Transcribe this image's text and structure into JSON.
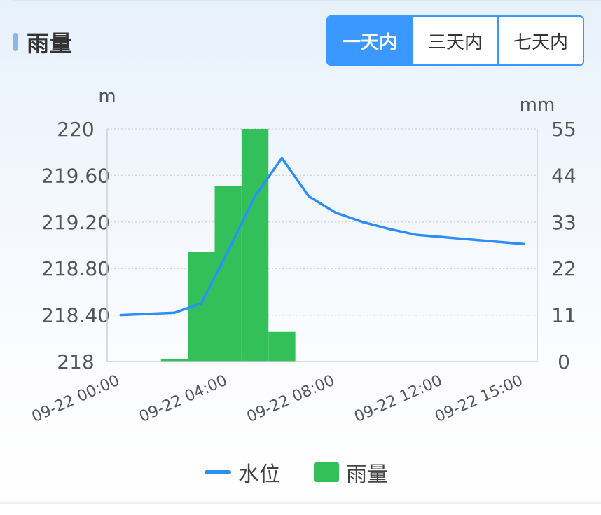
{
  "widget": {
    "title": "雨量",
    "tabs": [
      {
        "label": "一天内",
        "active": true
      },
      {
        "label": "三天内",
        "active": false
      },
      {
        "label": "七天内",
        "active": false
      }
    ]
  },
  "chart_data": {
    "type": "bar+line",
    "y_left": {
      "unit": "m",
      "range": [
        218,
        220
      ],
      "ticks": [
        "218",
        "218.40",
        "218.80",
        "219.20",
        "219.60",
        "220"
      ]
    },
    "y_right": {
      "unit": "mm",
      "range": [
        0,
        55
      ],
      "ticks": [
        "0",
        "11",
        "22",
        "33",
        "44",
        "55"
      ]
    },
    "x_ticks": [
      "09-22 00:00",
      "09-22 04:00",
      "09-22 08:00",
      "09-22 12:00",
      "09-22 15:00"
    ],
    "grid": true,
    "legend_position": "bottom",
    "series": [
      {
        "name": "水位",
        "type": "line",
        "axis": "left",
        "color": "#2b8ff7",
        "points": [
          {
            "x": 0.5,
            "y": 218.4
          },
          {
            "x": 2.5,
            "y": 218.42
          },
          {
            "x": 3.5,
            "y": 218.5
          },
          {
            "x": 4.5,
            "y": 218.95
          },
          {
            "x": 5.5,
            "y": 219.42
          },
          {
            "x": 6.5,
            "y": 219.75
          },
          {
            "x": 7.5,
            "y": 219.42
          },
          {
            "x": 8.5,
            "y": 219.28
          },
          {
            "x": 9.5,
            "y": 219.2
          },
          {
            "x": 10.5,
            "y": 219.14
          },
          {
            "x": 11.5,
            "y": 219.09
          },
          {
            "x": 12.5,
            "y": 219.07
          },
          {
            "x": 13.5,
            "y": 219.05
          },
          {
            "x": 14.5,
            "y": 219.03
          },
          {
            "x": 15.5,
            "y": 219.01
          }
        ]
      },
      {
        "name": "雨量",
        "type": "bar",
        "axis": "right",
        "color": "#33c05a",
        "bars": [
          {
            "x": 2,
            "value": 0.5
          },
          {
            "x": 3,
            "value": 26
          },
          {
            "x": 4,
            "value": 41.5
          },
          {
            "x": 5,
            "value": 55
          },
          {
            "x": 6,
            "value": 7
          }
        ]
      }
    ]
  }
}
